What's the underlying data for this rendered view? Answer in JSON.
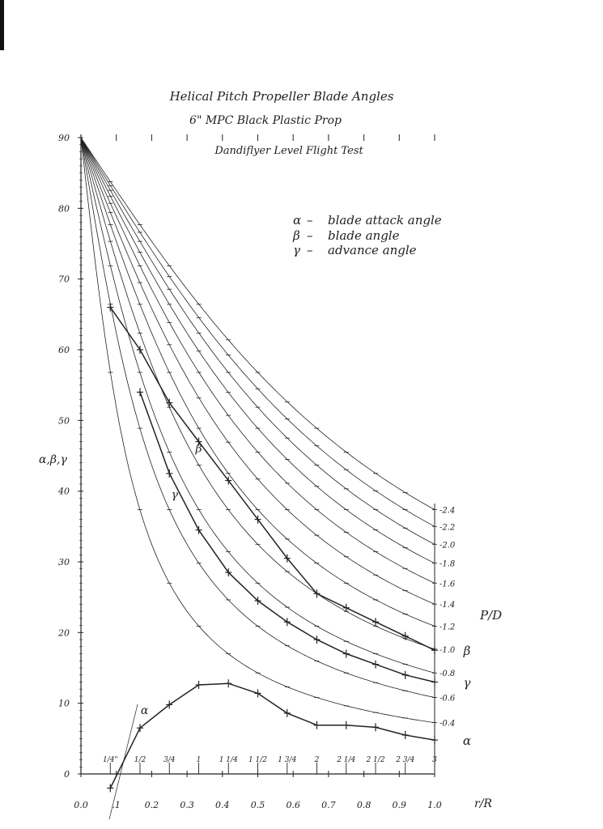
{
  "title": "Helical Pitch Propeller Blade Angles",
  "subtitle_1": "6\" MPC Black Plastic Prop",
  "subtitle_2": "Dandiflyer Level Flight Test",
  "legend": [
    {
      "symbol": "α",
      "text": "blade attack angle"
    },
    {
      "symbol": "β",
      "text": "blade angle"
    },
    {
      "symbol": "γ",
      "text": "advance angle"
    }
  ],
  "colors": {
    "ink": "#222222",
    "paper": "#ffffff"
  },
  "chart_data": {
    "type": "line",
    "title": "Helical Pitch Propeller Blade Angles",
    "ylabel": "α,β,γ",
    "xlabel": "r/R",
    "pd_label": "P/D",
    "xlim": [
      0.0,
      1.0
    ],
    "ylim": [
      0,
      90
    ],
    "grid": false,
    "x_ticks": [
      0.0,
      0.1,
      0.2,
      0.3,
      0.4,
      0.5,
      0.6,
      0.7,
      0.8,
      0.9,
      1.0
    ],
    "x_tick_labels": [
      "0.0",
      ".1",
      "0.2",
      "0.3",
      "0.4",
      "0.5",
      "0.6",
      "0.7",
      "0.8",
      "0.9",
      "1.0"
    ],
    "y_ticks": [
      0,
      10,
      20,
      30,
      40,
      50,
      60,
      70,
      80,
      90
    ],
    "y_tick_labels": [
      "0",
      "10",
      "20",
      "30",
      "40",
      "50",
      "60",
      "70",
      "80",
      "90"
    ],
    "inch_ticks": [
      {
        "label": "1/4\"",
        "x": 0.083
      },
      {
        "label": "1/2",
        "x": 0.167
      },
      {
        "label": "3/4",
        "x": 0.25
      },
      {
        "label": "1",
        "x": 0.333
      },
      {
        "label": "1 1/4",
        "x": 0.417
      },
      {
        "label": "1 1/2",
        "x": 0.5
      },
      {
        "label": "1 3/4",
        "x": 0.583
      },
      {
        "label": "2",
        "x": 0.667
      },
      {
        "label": "2 1/4",
        "x": 0.75
      },
      {
        "label": "2 1/2",
        "x": 0.833
      },
      {
        "label": "2 3/4",
        "x": 0.917
      },
      {
        "label": "3",
        "x": 1.0
      }
    ],
    "pd_ratios": [
      0.4,
      0.6,
      0.8,
      1.0,
      1.2,
      1.4,
      1.6,
      1.8,
      2.0,
      2.2,
      2.4
    ],
    "pd_labels": [
      "0.4",
      "0.6",
      "0.8",
      "1.0",
      "1.2",
      "1.4",
      "1.6",
      "1.8",
      "2.0",
      "2.2",
      "2.4"
    ],
    "series": [
      {
        "name": "β",
        "x": [
          0.083,
          0.167,
          0.25,
          0.333,
          0.417,
          0.5,
          0.583,
          0.667,
          0.75,
          0.833,
          0.917,
          1.0
        ],
        "values": [
          66,
          60,
          52.5,
          47,
          41.5,
          36,
          30.5,
          25.5,
          23.5,
          21.5,
          19.5,
          17.5
        ]
      },
      {
        "name": "γ",
        "x": [
          0.167,
          0.25,
          0.333,
          0.417,
          0.5,
          0.583,
          0.667,
          0.75,
          0.833,
          0.917,
          1.0
        ],
        "values": [
          54,
          42.5,
          34.5,
          28.5,
          24.5,
          21.5,
          19,
          17,
          15.5,
          14,
          13
        ]
      },
      {
        "name": "α",
        "x": [
          0.083,
          0.167,
          0.25,
          0.333,
          0.417,
          0.5,
          0.583,
          0.667,
          0.75,
          0.833,
          0.917,
          1.0
        ],
        "values": [
          -2,
          6.5,
          9.8,
          12.6,
          12.8,
          11.4,
          8.6,
          6.9,
          6.9,
          6.6,
          5.5,
          4.8
        ]
      }
    ]
  }
}
